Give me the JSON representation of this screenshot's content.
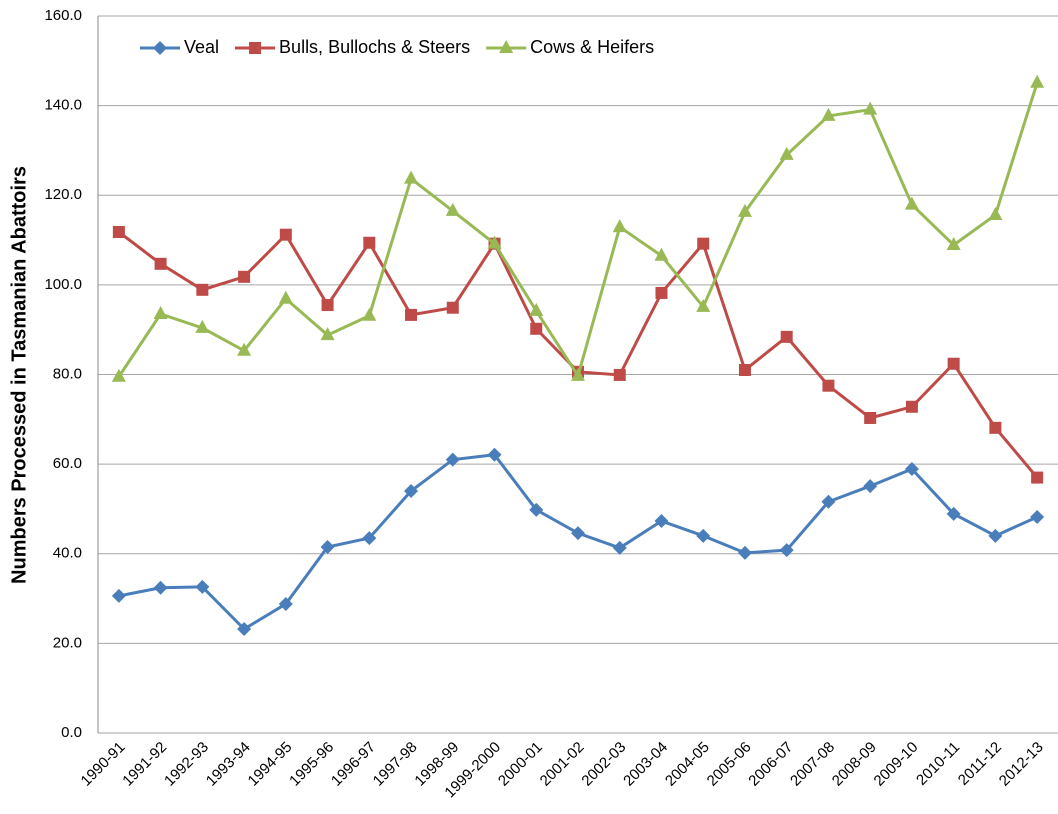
{
  "chart_data": {
    "type": "line",
    "y_label": "Numbers Processed in Tasmanian Abattoirs",
    "categories": [
      "1990-91",
      "1991-92",
      "1992-93",
      "1993-94",
      "1994-95",
      "1995-96",
      "1996-97",
      "1997-98",
      "1998-99",
      "1999-2000",
      "2000-01",
      "2001-02",
      "2002-03",
      "2003-04",
      "2004-05",
      "2005-06",
      "2006-07",
      "2007-08",
      "2008-09",
      "2009-10",
      "2010-11",
      "2011-12",
      "2012-13"
    ],
    "series": [
      {
        "name": "Veal",
        "color": "#4a7ebb",
        "marker": "diamond",
        "values": [
          30.6,
          32.4,
          32.6,
          23.2,
          28.8,
          41.5,
          43.5,
          54.0,
          61.0,
          62.1,
          49.8,
          44.6,
          41.3,
          47.3,
          44.0,
          40.2,
          40.8,
          51.6,
          55.1,
          58.9,
          48.9,
          44.0,
          48.2
        ]
      },
      {
        "name": "Bulls, Bullochs & Steers",
        "color": "#be4b48",
        "marker": "square",
        "values": [
          111.8,
          104.7,
          98.9,
          101.8,
          111.2,
          95.5,
          109.4,
          93.3,
          94.9,
          109.2,
          90.2,
          80.6,
          79.9,
          98.2,
          109.2,
          81.0,
          88.4,
          77.5,
          70.3,
          72.8,
          82.4,
          68.1,
          57.0
        ]
      },
      {
        "name": "Cows & Heifers",
        "color": "#98b954",
        "marker": "triangle",
        "values": [
          79.5,
          93.5,
          90.4,
          85.3,
          96.9,
          88.8,
          93.1,
          123.7,
          116.5,
          109.2,
          94.2,
          79.7,
          112.9,
          106.5,
          95.1,
          116.3,
          129.0,
          137.7,
          139.1,
          117.9,
          108.9,
          115.6,
          145.1
        ]
      }
    ],
    "ylim": [
      0,
      160
    ],
    "yticks": [
      {
        "value": 0,
        "label": "0.0"
      },
      {
        "value": 20,
        "label": "20.0"
      },
      {
        "value": 40,
        "label": "40.0"
      },
      {
        "value": 60,
        "label": "60.0"
      },
      {
        "value": 80,
        "label": "80.0"
      },
      {
        "value": 100,
        "label": "100.0"
      },
      {
        "value": 120,
        "label": "120.0"
      },
      {
        "value": 140,
        "label": "140.0"
      },
      {
        "value": 160,
        "label": "160.0"
      }
    ],
    "grid": true,
    "legend": "top-left"
  }
}
